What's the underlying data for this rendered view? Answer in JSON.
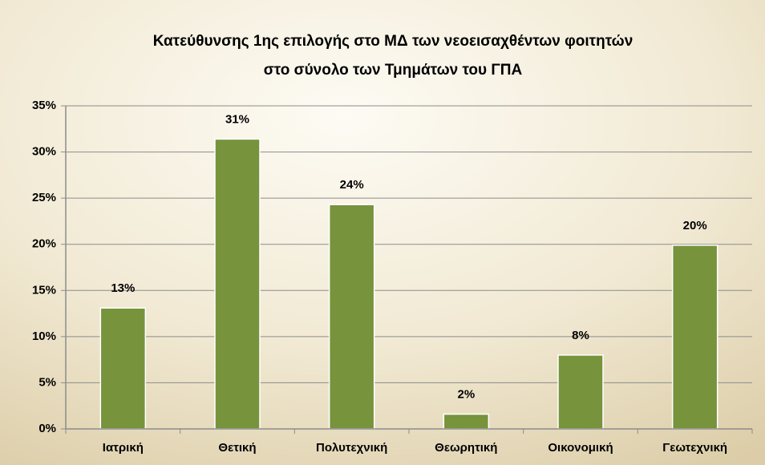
{
  "chart_data": {
    "type": "bar",
    "title": [
      "Κατεύθυνσης 1ης επιλογής στο ΜΔ των νεοεισαχθέντων φοιτητών",
      "στο σύνολο των Τμημάτων του ΓΠΑ"
    ],
    "categories": [
      "Ιατρική",
      "Θετική",
      "Πολυτεχνική",
      "Θεωρητική",
      "Οικονομική",
      "Γεωτεχνική"
    ],
    "values": [
      13.1,
      31.4,
      24.3,
      1.6,
      8.0,
      19.9
    ],
    "value_labels": [
      "13%",
      "31%",
      "24%",
      "2%",
      "8%",
      "20%"
    ],
    "color": "#77933c",
    "ylim": [
      0,
      35
    ],
    "yticks": [
      {
        "value": 0,
        "label": "0%"
      },
      {
        "value": 5,
        "label": "5%"
      },
      {
        "value": 10,
        "label": "10%"
      },
      {
        "value": 15,
        "label": "15%"
      },
      {
        "value": 20,
        "label": "20%"
      },
      {
        "value": 25,
        "label": "25%"
      },
      {
        "value": 30,
        "label": "30%"
      },
      {
        "value": 35,
        "label": "35%"
      }
    ],
    "grid": true
  }
}
